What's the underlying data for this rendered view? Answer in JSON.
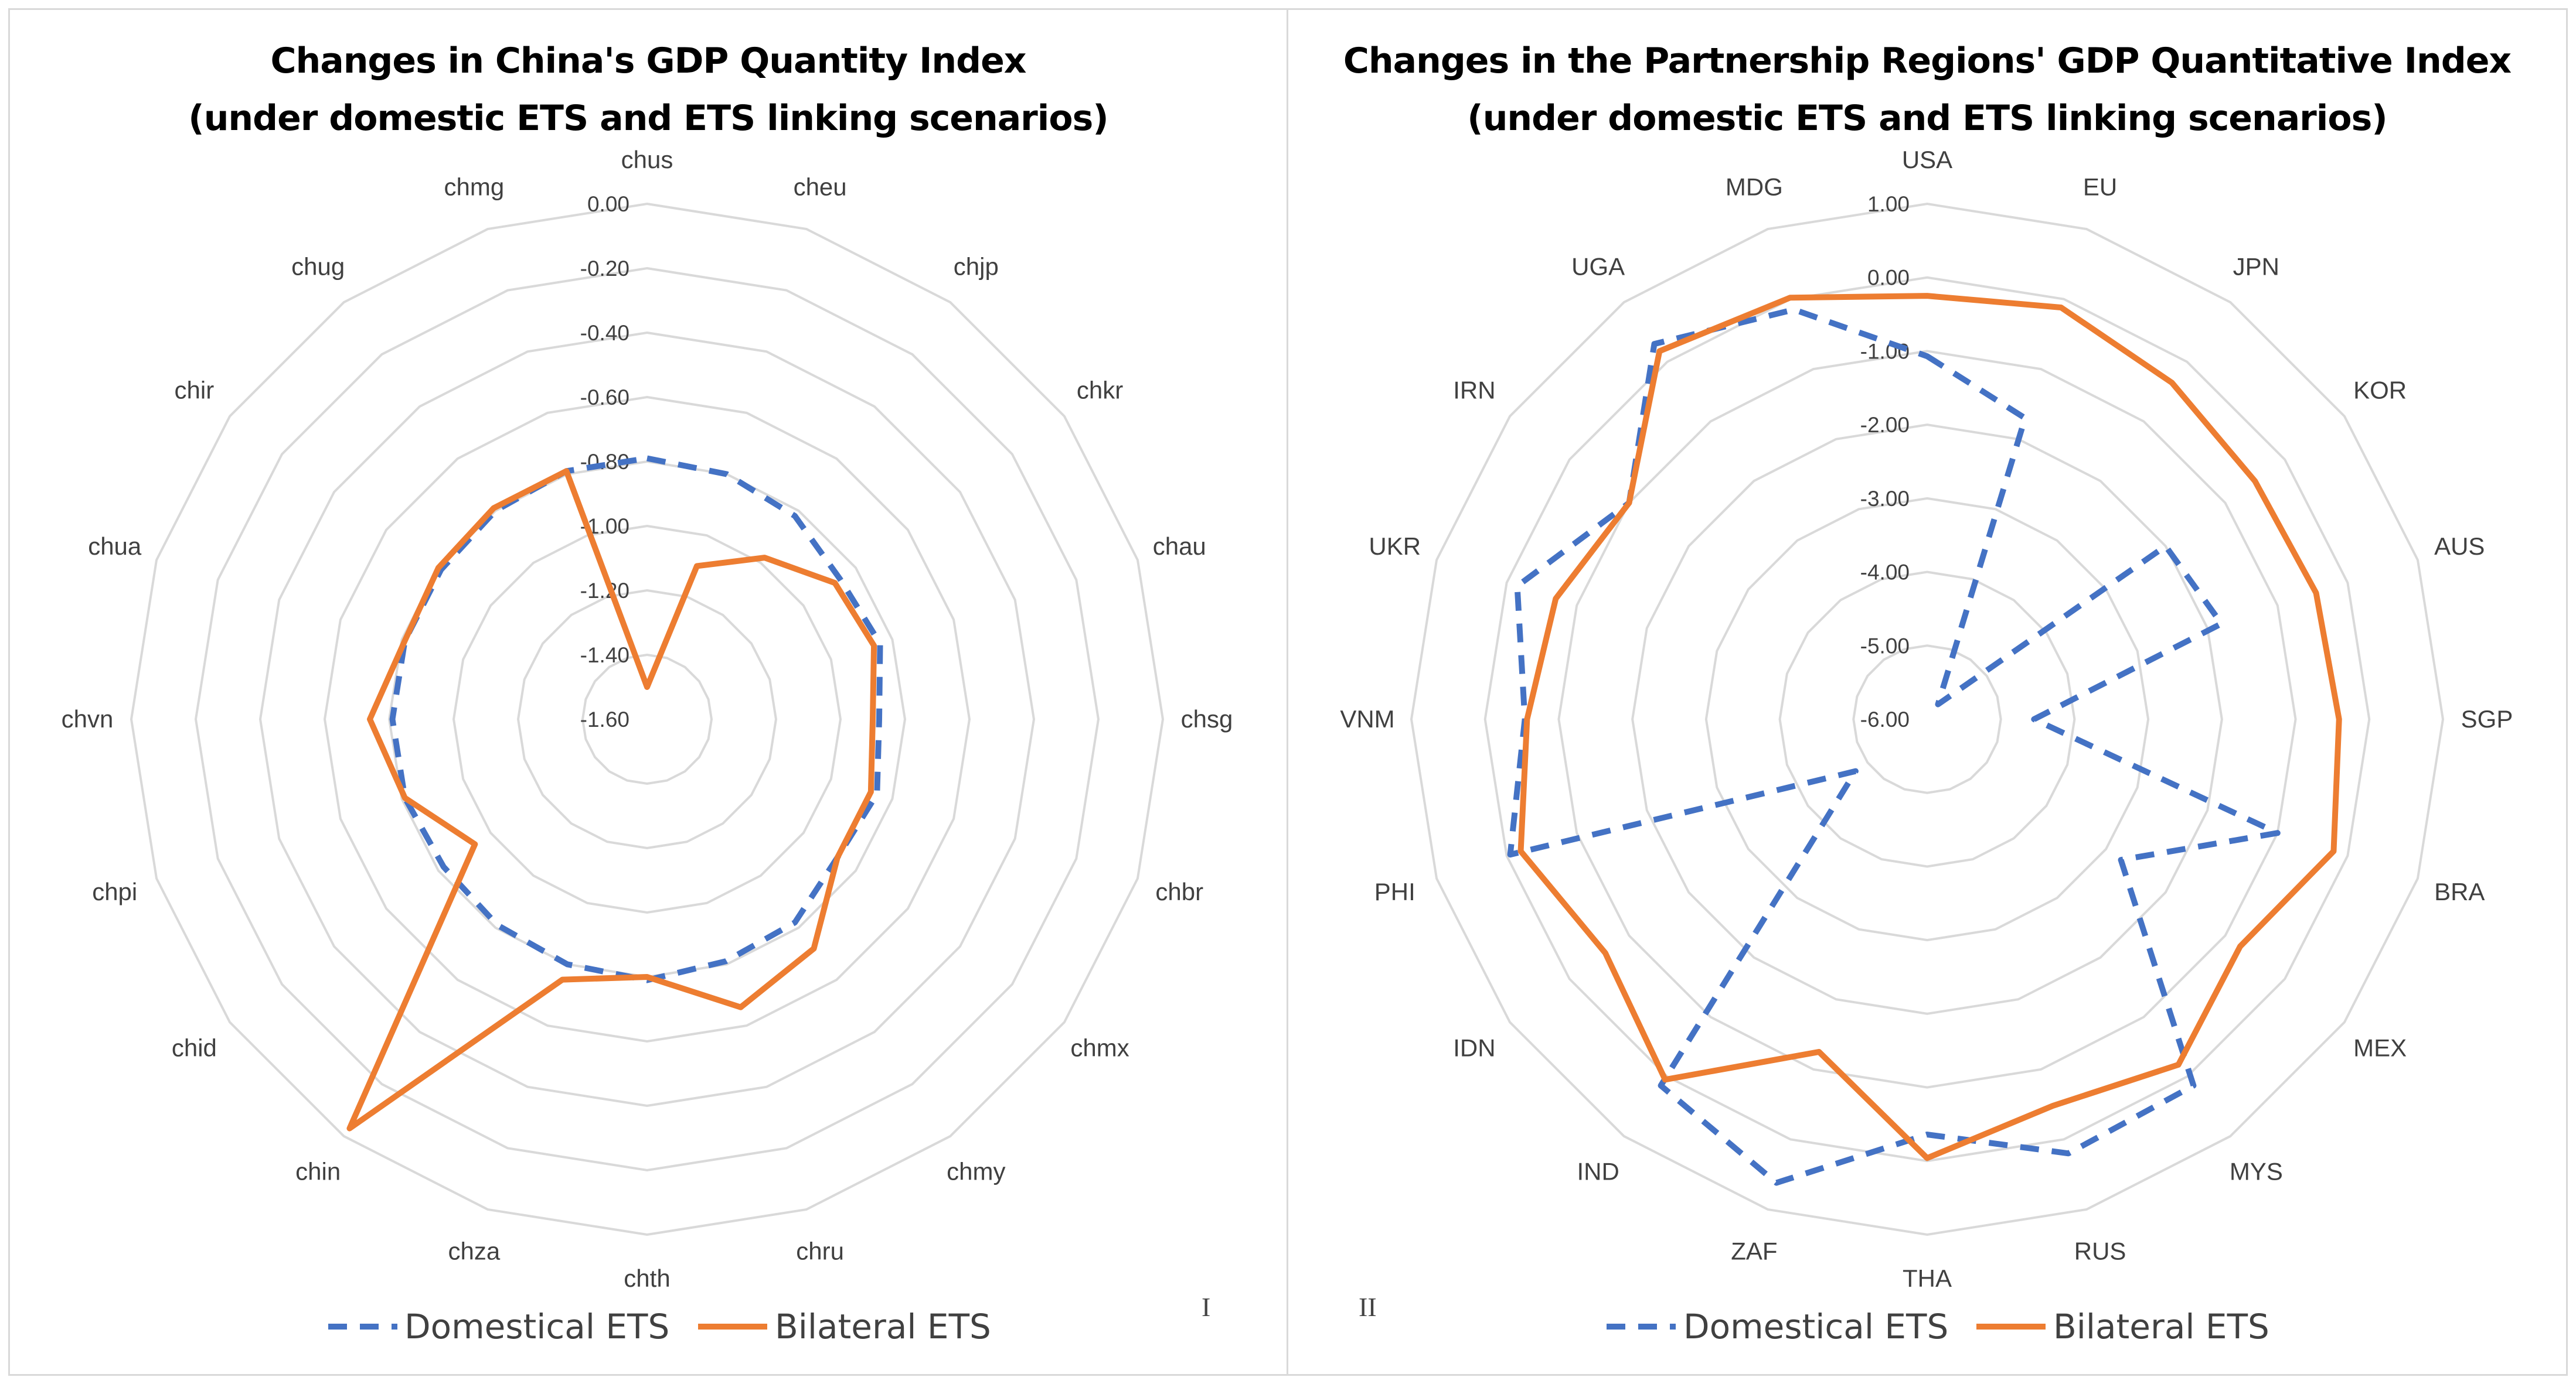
{
  "chart_data": [
    {
      "type": "radar",
      "title": "Changes in China's GDP Quantity Index",
      "subtitle": "(under domestic ETS and ETS linking scenarios)",
      "panel_label": "I",
      "categories": [
        "chus",
        "cheu",
        "chjp",
        "chkr",
        "chau",
        "chsg",
        "chbr",
        "chmx",
        "chmy",
        "chru",
        "chth",
        "chza",
        "chin",
        "chid",
        "chpi",
        "chvn",
        "chua",
        "chir",
        "chug",
        "chmg"
      ],
      "rlim": [
        -1.6,
        0.0
      ],
      "ticks": [
        0.0,
        -0.2,
        -0.4,
        -0.6,
        -0.8,
        -1.0,
        -1.2,
        -1.4,
        -1.6
      ],
      "tick_labels": [
        "0.00",
        "-0.20",
        "-0.40",
        "-0.60",
        "-0.80",
        "-1.00",
        "-1.20",
        "-1.40",
        "-1.60"
      ],
      "grid": true,
      "legend_position": "bottom",
      "series": [
        {
          "name": "Domestical ETS",
          "color": "#4472C4",
          "style": "dashed",
          "values": [
            -0.79,
            -0.8,
            -0.82,
            -0.86,
            -0.84,
            -0.88,
            -0.85,
            -0.87,
            -0.82,
            -0.81,
            -0.79,
            -0.8,
            -0.81,
            -0.82,
            -0.81,
            -0.81,
            -0.81,
            -0.81,
            -0.8,
            -0.79
          ]
        },
        {
          "name": "Bilateral ETS",
          "color": "#ED7D31",
          "style": "solid",
          "values": [
            -1.5,
            -1.1,
            -0.98,
            -0.88,
            -0.86,
            -0.9,
            -0.87,
            -0.87,
            -0.72,
            -0.66,
            -0.8,
            -0.75,
            -0.03,
            -0.94,
            -0.81,
            -0.74,
            -0.81,
            -0.8,
            -0.79,
            -0.79
          ]
        }
      ]
    },
    {
      "type": "radar",
      "title": "Changes in the Partnership Regions' GDP Quantitative Index",
      "subtitle": "(under domestic ETS and ETS linking scenarios)",
      "panel_label": "II",
      "categories": [
        "USA",
        "EU",
        "JPN",
        "KOR",
        "AUS",
        "SGP",
        "BRA",
        "MEX",
        "MYS",
        "RUS",
        "THA",
        "ZAF",
        "IND",
        "IDN",
        "PHI",
        "VNM",
        "UKR",
        "IRN",
        "UGA",
        "MDG"
      ],
      "rlim": [
        -6.0,
        1.0
      ],
      "ticks": [
        1,
        0,
        -1,
        -2,
        -3,
        -4,
        -5,
        -6
      ],
      "tick_labels": [
        "1.00",
        "0.00",
        "-1.00",
        "-2.00",
        "-3.00",
        "-4.00",
        "-5.00",
        "-6.00"
      ],
      "grid": true,
      "legend_position": "bottom",
      "series": [
        {
          "name": "Domestical ETS",
          "color": "#4472C4",
          "style": "dashed",
          "values": [
            -1.07,
            -1.7,
            -5.75,
            -2.0,
            -1.8,
            -4.55,
            -1.0,
            -2.75,
            0.15,
            0.2,
            -0.36,
            0.62,
            0.15,
            -4.8,
            -0.05,
            -0.54,
            -0.15,
            -1.0,
            0.3,
            -0.15
          ]
        },
        {
          "name": "Bilateral ETS",
          "color": "#ED7D31",
          "style": "solid",
          "values": [
            -0.25,
            -0.12,
            -0.35,
            -0.5,
            -0.45,
            -0.41,
            -0.2,
            -0.75,
            -0.2,
            -0.48,
            -0.04,
            -1.25,
            0.05,
            -0.6,
            -0.2,
            -0.57,
            -0.7,
            -1.0,
            0.18,
            0.02
          ]
        }
      ]
    }
  ]
}
